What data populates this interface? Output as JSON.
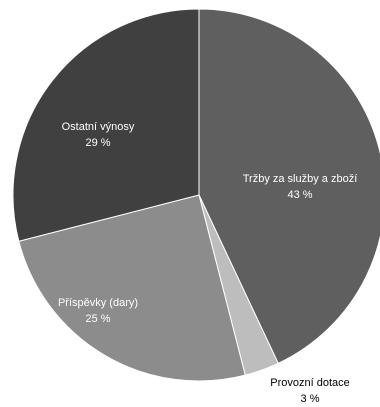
{
  "chart_data": {
    "type": "pie",
    "title": "",
    "start_angle_deg": 0,
    "direction": "clockwise",
    "slices": [
      {
        "label": "Tržby za služby a zboží",
        "value": 43,
        "value_label": "43 %",
        "color": "#5f5f5f",
        "label_color": "#ffffff",
        "label_position": "inside"
      },
      {
        "label": "Provozní dotace",
        "value": 3,
        "value_label": "3 %",
        "color": "#bdbdbd",
        "label_color": "#000000",
        "label_position": "outside"
      },
      {
        "label": "Příspěvky (dary)",
        "value": 25,
        "value_label": "25 %",
        "color": "#8c8c8c",
        "label_color": "#ffffff",
        "label_position": "inside"
      },
      {
        "label": "Ostatní výnosy",
        "value": 29,
        "value_label": "29 %",
        "color": "#404040",
        "label_color": "#ffffff",
        "label_position": "inside"
      }
    ],
    "slice_border_color": "#ffffff",
    "legend": "none"
  }
}
